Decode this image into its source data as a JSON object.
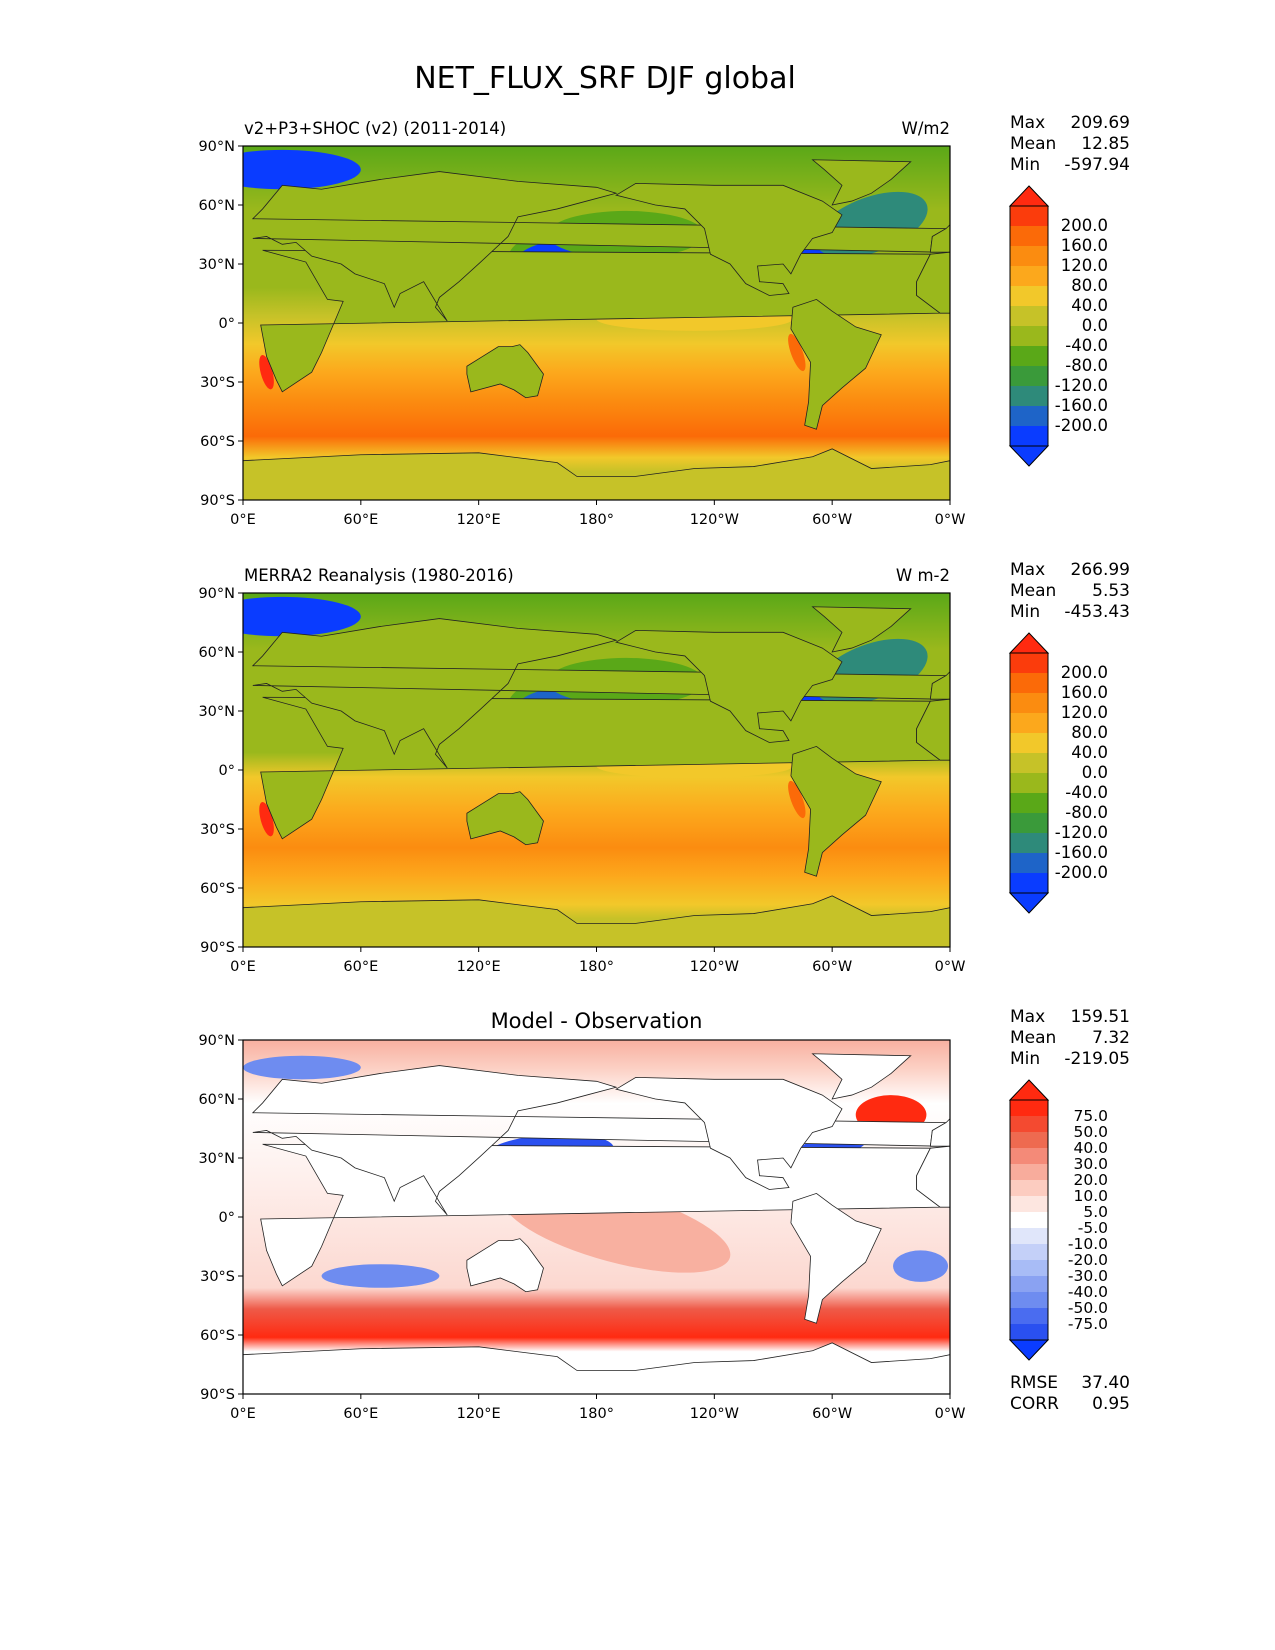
{
  "title": "NET_FLUX_SRF DJF global",
  "lat_ticks": [
    "90°N",
    "60°N",
    "30°N",
    "0°",
    "30°S",
    "60°S",
    "90°S"
  ],
  "lon_ticks": [
    "0°E",
    "60°E",
    "120°E",
    "180°",
    "120°W",
    "60°W",
    "0°W"
  ],
  "colors": {
    "blue": "#0a3cff",
    "blue2": "#1e64c8",
    "teal": "#2e8a7a",
    "green_dark": "#3a9a3a",
    "green": "#5aa818",
    "olive": "#9ab81c",
    "yellowgreen": "#c6c228",
    "yellow": "#f2c82a",
    "orange_light": "#fca81c",
    "orange": "#fb8c10",
    "orange_dark": "#fb6a08",
    "red": "#ff2a10",
    "white": "#ffffff",
    "pink1": "#fcd8d0",
    "pink2": "#f8b0a0",
    "pink3": "#f48a78",
    "red2": "#ee5a48",
    "lblue1": "#d8e0fa",
    "lblue2": "#a8bcf6",
    "mblue": "#6e8cf0",
    "dblue": "#2a50f0"
  },
  "panels": [
    {
      "id": "model",
      "left_title": "v2+P3+SHOC (v2) (2011-2014)",
      "center_title": "",
      "units": "W/m2",
      "stats": [
        {
          "label": "Max",
          "value": "209.69"
        },
        {
          "label": "Mean",
          "value": "12.85"
        },
        {
          "label": "Min",
          "value": "-597.94"
        }
      ],
      "colorbar": {
        "labels": [
          "200.0",
          "160.0",
          "120.0",
          "80.0",
          "40.0",
          "0.0",
          "-40.0",
          "-80.0",
          "-120.0",
          "-160.0",
          "-200.0"
        ],
        "colors": [
          "#fb3c0c",
          "#fb6a08",
          "#fb8c10",
          "#fca81c",
          "#f2c82a",
          "#c6c228",
          "#9ab81c",
          "#5aa818",
          "#3a9a3a",
          "#2e8a7a",
          "#1e64c8",
          "#0a3cff"
        ],
        "top_color": "#ff2a10",
        "bottom_color": "#0a3cff"
      },
      "extra_stats": []
    },
    {
      "id": "obs",
      "left_title": "MERRA2 Reanalysis (1980-2016)",
      "center_title": "",
      "units": "W m-2",
      "stats": [
        {
          "label": "Max",
          "value": "266.99"
        },
        {
          "label": "Mean",
          "value": "5.53"
        },
        {
          "label": "Min",
          "value": "-453.43"
        }
      ],
      "colorbar": {
        "labels": [
          "200.0",
          "160.0",
          "120.0",
          "80.0",
          "40.0",
          "0.0",
          "-40.0",
          "-80.0",
          "-120.0",
          "-160.0",
          "-200.0"
        ],
        "colors": [
          "#fb3c0c",
          "#fb6a08",
          "#fb8c10",
          "#fca81c",
          "#f2c82a",
          "#c6c228",
          "#9ab81c",
          "#5aa818",
          "#3a9a3a",
          "#2e8a7a",
          "#1e64c8",
          "#0a3cff"
        ],
        "top_color": "#ff2a10",
        "bottom_color": "#0a3cff"
      },
      "extra_stats": []
    },
    {
      "id": "diff",
      "left_title": "",
      "center_title": "Model - Observation",
      "units": "",
      "stats": [
        {
          "label": "Max",
          "value": "159.51"
        },
        {
          "label": "Mean",
          "value": "7.32"
        },
        {
          "label": "Min",
          "value": "-219.05"
        }
      ],
      "colorbar": {
        "labels": [
          "75.0",
          "50.0",
          "40.0",
          "30.0",
          "20.0",
          "10.0",
          "5.0",
          "-5.0",
          "-10.0",
          "-20.0",
          "-30.0",
          "-40.0",
          "-50.0",
          "-75.0"
        ],
        "colors": [
          "#ff2a10",
          "#f44a30",
          "#ee6a50",
          "#f48a78",
          "#f8ac9c",
          "#fcccc0",
          "#fde6e0",
          "#ffffff",
          "#e0e6fa",
          "#c4d0f8",
          "#a8bcf6",
          "#8aa2f2",
          "#6e8cf0",
          "#4a6cf0",
          "#2a50f0"
        ],
        "top_color": "#ff2a10",
        "bottom_color": "#0a3cff"
      },
      "extra_stats": [
        {
          "label": "RMSE",
          "value": "37.40"
        },
        {
          "label": "CORR",
          "value": "0.95"
        }
      ]
    }
  ]
}
